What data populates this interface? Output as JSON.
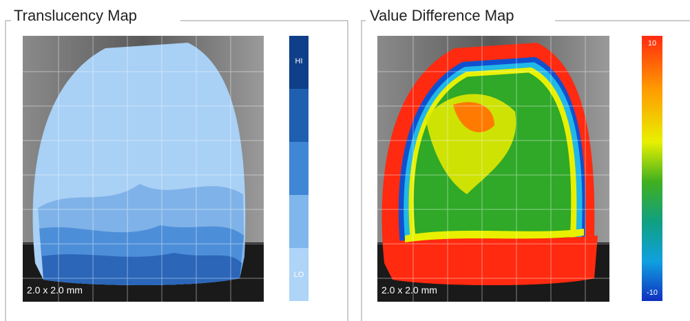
{
  "panels": [
    {
      "title": "Translucency Map",
      "scale_label": "2.0 x 2.0 mm",
      "legend": {
        "top": "HI",
        "bottom": "LO"
      }
    },
    {
      "title": "Value Difference Map",
      "scale_label": "2.0 x 2.0 mm",
      "legend": {
        "top": 10,
        "bottom": -10
      }
    }
  ]
}
